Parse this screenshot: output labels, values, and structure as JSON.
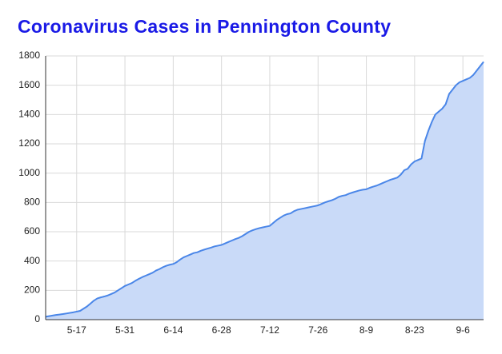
{
  "chart_data": {
    "type": "area",
    "title": "Coronavirus Cases in Pennington County",
    "categories": [
      null,
      null,
      null,
      null,
      null,
      null,
      null,
      null,
      null,
      "5-17",
      null,
      null,
      null,
      null,
      null,
      null,
      null,
      null,
      null,
      null,
      null,
      null,
      null,
      "5-31",
      null,
      null,
      null,
      null,
      null,
      null,
      null,
      null,
      null,
      null,
      null,
      null,
      null,
      "6-14",
      null,
      null,
      null,
      null,
      null,
      null,
      null,
      null,
      null,
      null,
      null,
      null,
      null,
      "6-28",
      null,
      null,
      null,
      null,
      null,
      null,
      null,
      null,
      null,
      null,
      null,
      null,
      null,
      "7-12",
      null,
      null,
      null,
      null,
      null,
      null,
      null,
      null,
      null,
      null,
      null,
      null,
      null,
      "7-26",
      null,
      null,
      null,
      null,
      null,
      null,
      null,
      null,
      null,
      null,
      null,
      null,
      null,
      "8-9",
      null,
      null,
      null,
      null,
      null,
      null,
      null,
      null,
      null,
      null,
      null,
      null,
      null,
      "8-23",
      null,
      null,
      null,
      null,
      null,
      null,
      null,
      null,
      null,
      null,
      null,
      null,
      null,
      "9-6",
      null,
      null,
      null,
      null,
      null,
      null
    ],
    "values": [
      20,
      24,
      28,
      32,
      35,
      38,
      42,
      46,
      50,
      55,
      60,
      75,
      90,
      110,
      130,
      145,
      152,
      158,
      165,
      175,
      185,
      200,
      215,
      230,
      240,
      250,
      265,
      278,
      290,
      300,
      310,
      320,
      335,
      345,
      358,
      368,
      375,
      380,
      392,
      410,
      425,
      435,
      445,
      455,
      460,
      470,
      478,
      485,
      492,
      500,
      505,
      510,
      520,
      530,
      540,
      550,
      558,
      570,
      585,
      600,
      610,
      618,
      625,
      630,
      635,
      640,
      660,
      680,
      695,
      710,
      720,
      725,
      740,
      750,
      755,
      760,
      765,
      770,
      775,
      780,
      790,
      800,
      808,
      815,
      825,
      838,
      845,
      850,
      860,
      868,
      875,
      882,
      887,
      890,
      900,
      908,
      915,
      925,
      935,
      945,
      955,
      962,
      970,
      990,
      1020,
      1030,
      1060,
      1080,
      1090,
      1100,
      1220,
      1290,
      1350,
      1400,
      1420,
      1440,
      1470,
      1540,
      1570,
      1600,
      1620,
      1630,
      1640,
      1650,
      1670,
      1700,
      1730,
      1760
    ],
    "color": "#4a86e8",
    "fill": "#c9daf8",
    "ylim": [
      0,
      1800
    ],
    "yticks": [
      0,
      200,
      400,
      600,
      800,
      1000,
      1200,
      1400,
      1600,
      1800
    ],
    "grid": true
  }
}
